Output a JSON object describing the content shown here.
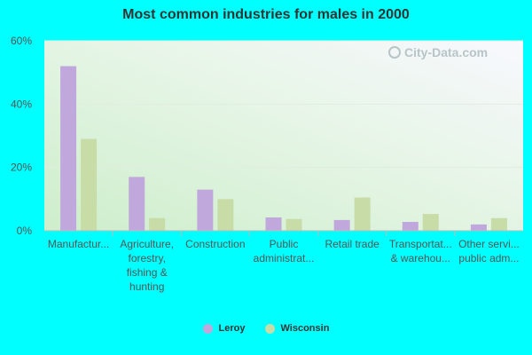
{
  "chart_data": {
    "type": "bar",
    "title": "Most common industries for males in 2000",
    "categories": [
      "Manufactur...",
      "Agriculture, forestry, fishing & hunting",
      "Construction",
      "Public administrat...",
      "Retail trade",
      "Transportat... & warehou...",
      "Other servi... public adm..."
    ],
    "category_lines": [
      [
        "Manufactur..."
      ],
      [
        "Agriculture,",
        "forestry,",
        "fishing &",
        "hunting"
      ],
      [
        "Construction"
      ],
      [
        "Public",
        "administrat..."
      ],
      [
        "Retail trade"
      ],
      [
        "Transportat...",
        "& warehou..."
      ],
      [
        "Other servi...",
        "public adm..."
      ]
    ],
    "series": [
      {
        "name": "Leroy",
        "values": [
          52,
          17,
          13,
          4.2,
          3.4,
          2.8,
          2.0
        ],
        "color": "#c0a8dc"
      },
      {
        "name": "Wisconsin",
        "values": [
          29,
          4,
          10,
          3.7,
          10.5,
          5.3,
          4.0
        ],
        "color": "#c8dca8"
      }
    ],
    "ylim": [
      0,
      60
    ],
    "yticks": [
      0,
      20,
      40,
      60
    ],
    "ytick_labels": [
      "0%",
      "20%",
      "40%",
      "60%"
    ],
    "grid": true,
    "legend_position": "bottom"
  },
  "watermark": "City-Data.com"
}
